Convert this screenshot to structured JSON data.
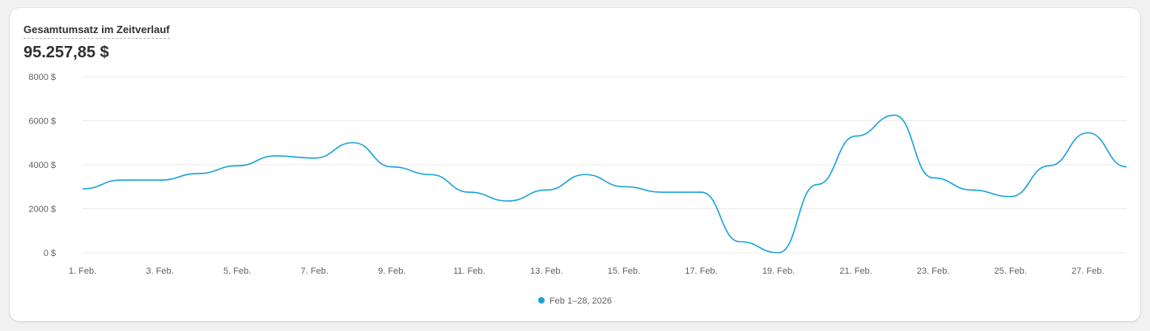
{
  "card": {
    "title": "Gesamtumsatz im Zeitverlauf",
    "total": "95.257,85 $"
  },
  "colors": {
    "series": "#1ba3d6",
    "grid": "#ebebeb",
    "text": "#616161"
  },
  "chart_data": {
    "type": "line",
    "title": "Gesamtumsatz im Zeitverlauf",
    "xlabel": "",
    "ylabel": "",
    "ylim": [
      0,
      8000
    ],
    "yticks": [
      {
        "value": 0,
        "label": "0 $"
      },
      {
        "value": 2000,
        "label": "2000 $"
      },
      {
        "value": 4000,
        "label": "4000 $"
      },
      {
        "value": 6000,
        "label": "6000 $"
      },
      {
        "value": 8000,
        "label": "8000 $"
      }
    ],
    "x": [
      "2026-02-01",
      "2026-02-02",
      "2026-02-03",
      "2026-02-04",
      "2026-02-05",
      "2026-02-06",
      "2026-02-07",
      "2026-02-08",
      "2026-02-09",
      "2026-02-10",
      "2026-02-11",
      "2026-02-12",
      "2026-02-13",
      "2026-02-14",
      "2026-02-15",
      "2026-02-16",
      "2026-02-17",
      "2026-02-18",
      "2026-02-19",
      "2026-02-20",
      "2026-02-21",
      "2026-02-22",
      "2026-02-23",
      "2026-02-24",
      "2026-02-25",
      "2026-02-26",
      "2026-02-27",
      "2026-02-28"
    ],
    "xtick_labels": [
      {
        "index": 0,
        "label": "1. Feb."
      },
      {
        "index": 2,
        "label": "3. Feb."
      },
      {
        "index": 4,
        "label": "5. Feb."
      },
      {
        "index": 6,
        "label": "7. Feb."
      },
      {
        "index": 8,
        "label": "9. Feb."
      },
      {
        "index": 10,
        "label": "11. Feb."
      },
      {
        "index": 12,
        "label": "13. Feb."
      },
      {
        "index": 14,
        "label": "15. Feb."
      },
      {
        "index": 16,
        "label": "17. Feb."
      },
      {
        "index": 18,
        "label": "19. Feb."
      },
      {
        "index": 20,
        "label": "21. Feb."
      },
      {
        "index": 22,
        "label": "23. Feb."
      },
      {
        "index": 24,
        "label": "25. Feb."
      },
      {
        "index": 26,
        "label": "27. Feb."
      }
    ],
    "series": [
      {
        "name": "Feb 1–28, 2026",
        "color": "#1ba3d6",
        "values": [
          2900,
          3300,
          3300,
          3600,
          3950,
          4400,
          4300,
          5000,
          3900,
          3550,
          2750,
          2350,
          2850,
          3550,
          3000,
          2750,
          2750,
          500,
          0,
          3100,
          5300,
          6250,
          3400,
          2850,
          2550,
          3950,
          5450,
          3900
        ]
      }
    ],
    "grid": true,
    "legend_position": "bottom-center"
  }
}
